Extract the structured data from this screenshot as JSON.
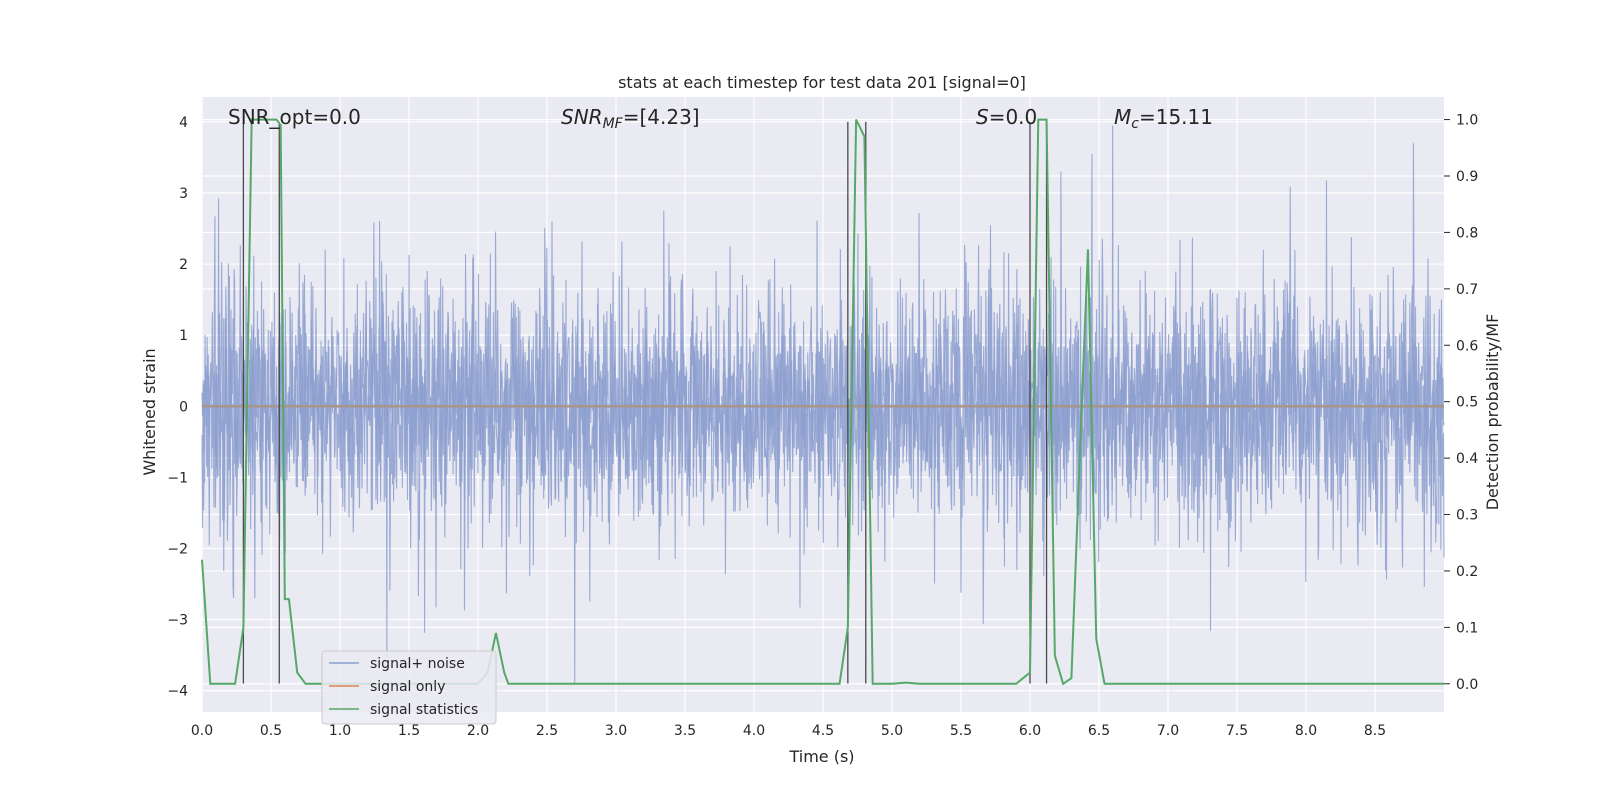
{
  "chart_data": {
    "type": "line",
    "title": "stats at each timestep for test data 201 [signal=0]",
    "xlabel": "Time (s)",
    "ylabel_left": "Whitened strain",
    "ylabel_right": "Detection probability/MF",
    "xlim": [
      0.0,
      9.0
    ],
    "ylim_left": [
      -4.3,
      4.35
    ],
    "ylim_right": [
      -0.05,
      1.04
    ],
    "x_ticks": [
      0.0,
      0.5,
      1.0,
      1.5,
      2.0,
      2.5,
      3.0,
      3.5,
      4.0,
      4.5,
      5.0,
      5.5,
      6.0,
      6.5,
      7.0,
      7.5,
      8.0,
      8.5
    ],
    "x_tick_labels": [
      "0.0",
      "0.5",
      "1.0",
      "1.5",
      "2.0",
      "2.5",
      "3.0",
      "3.5",
      "4.0",
      "4.5",
      "5.0",
      "5.5",
      "6.0",
      "6.5",
      "7.0",
      "7.5",
      "8.0",
      "8.5"
    ],
    "y_left_ticks": [
      4,
      3,
      2,
      1,
      0,
      -1,
      -2,
      -3,
      -4
    ],
    "y_left_tick_labels": [
      "4",
      "3",
      "2",
      "1",
      "0",
      "−1",
      "−2",
      "−3",
      "−4"
    ],
    "y_right_ticks": [
      1.0,
      0.9,
      0.8,
      0.7,
      0.6,
      0.5,
      0.4,
      0.3,
      0.2,
      0.1,
      0.0
    ],
    "y_right_tick_labels": [
      "1.0",
      "0.9",
      "0.8",
      "0.7",
      "0.6",
      "0.5",
      "0.4",
      "0.3",
      "0.2",
      "0.1",
      "0.0"
    ],
    "grid": true,
    "annotations": {
      "snr_opt": "SNR_opt=0.0",
      "snr_mf_main": "SNR",
      "snr_mf_sub": "MF",
      "snr_mf_value": "=[4.23]",
      "s_main": "S",
      "s_value": "=0.0",
      "mc_main": "M",
      "mc_sub": "c",
      "mc_value": "=15.11"
    },
    "legend": {
      "position": "lower-left",
      "entries": [
        {
          "label": "signal+ noise",
          "color": "#8c9fcf"
        },
        {
          "label": "signal only",
          "color": "#dd8452"
        },
        {
          "label": "signal statistics",
          "color": "#55a868"
        }
      ]
    },
    "series": [
      {
        "name": "signal+ noise",
        "axis": "left",
        "color": "#8c9fcf",
        "style": "dense whitened noise, sampled at 4096 Hz",
        "sample_rate_hz": 4096,
        "std": 0.95
      },
      {
        "name": "signal only",
        "axis": "left",
        "color": "#dd8452",
        "values_constant": 0.0
      },
      {
        "name": "signal statistics",
        "axis": "right",
        "color": "#55a868",
        "x": [
          0.0,
          0.06,
          0.12,
          0.18,
          0.24,
          0.3,
          0.36,
          0.42,
          0.48,
          0.54,
          0.57,
          0.6,
          0.63,
          0.69,
          0.75,
          0.81,
          0.87,
          1.0,
          1.5,
          2.0,
          2.07,
          2.13,
          2.19,
          2.22,
          2.3,
          2.5,
          3.0,
          3.5,
          4.0,
          4.5,
          4.62,
          4.68,
          4.74,
          4.8,
          4.86,
          4.92,
          5.0,
          5.1,
          5.2,
          5.5,
          5.9,
          6.0,
          6.06,
          6.12,
          6.18,
          6.24,
          6.3,
          6.36,
          6.42,
          6.48,
          6.54,
          6.6,
          7.0,
          7.5,
          8.0,
          8.5,
          9.0
        ],
        "y": [
          0.22,
          0.0,
          0.0,
          0.0,
          0.0,
          0.1,
          1.0,
          1.0,
          1.0,
          1.0,
          0.99,
          0.15,
          0.15,
          0.02,
          0.0,
          0.0,
          0.0,
          0.0,
          0.0,
          0.0,
          0.02,
          0.09,
          0.02,
          0.0,
          0.0,
          0.0,
          0.0,
          0.0,
          0.0,
          0.0,
          0.0,
          0.1,
          1.0,
          0.97,
          0.0,
          0.0,
          0.0,
          0.002,
          0.0,
          0.0,
          0.0,
          0.02,
          1.0,
          1.0,
          0.05,
          0.0,
          0.01,
          0.4,
          0.77,
          0.08,
          0.0,
          0.0,
          0.0,
          0.0,
          0.0,
          0.0,
          0.0
        ]
      }
    ],
    "vertical_markers": [
      {
        "x": 0.3,
        "y_top": 4.0,
        "y_bottom": -3.9
      },
      {
        "x": 0.56,
        "y_top": 4.0,
        "y_bottom": -3.9
      },
      {
        "x": 4.68,
        "y_top": 4.0,
        "y_bottom": -3.9
      },
      {
        "x": 4.81,
        "y_top": 4.0,
        "y_bottom": -3.9
      },
      {
        "x": 6.0,
        "y_top": 4.0,
        "y_bottom": -3.9
      },
      {
        "x": 6.12,
        "y_top": 4.0,
        "y_bottom": -3.9
      }
    ],
    "notable_noise_peaks": [
      {
        "x": 6.45,
        "y": 3.55
      },
      {
        "x": 6.6,
        "y": 3.95
      },
      {
        "x": 8.78,
        "y": 3.7
      },
      {
        "x": 2.7,
        "y": -3.9
      },
      {
        "x": 1.34,
        "y": -3.55
      }
    ]
  }
}
